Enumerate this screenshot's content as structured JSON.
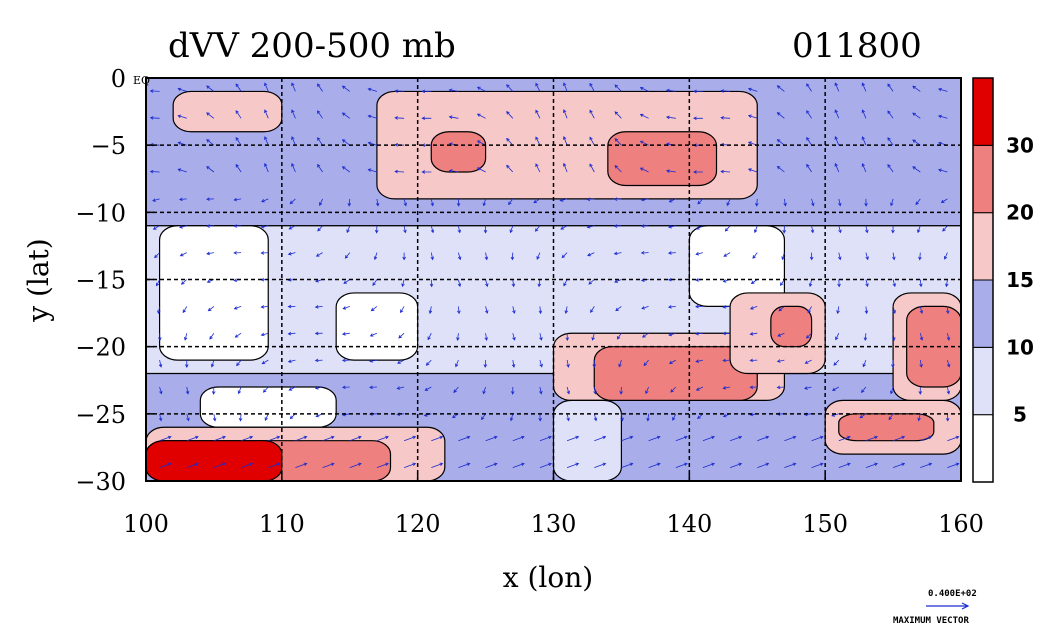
{
  "chart_data": {
    "type": "heatmap",
    "title": "dVV 200-500 mb",
    "title_right": "011800",
    "xlabel": "x (lon)",
    "ylabel": "y (lat)",
    "xlim": [
      100,
      160
    ],
    "ylim": [
      -30,
      0
    ],
    "xticks": [
      100,
      110,
      120,
      130,
      140,
      150,
      160
    ],
    "yticks": [
      0,
      -5,
      -10,
      -15,
      -20,
      -25,
      -30
    ],
    "xtick_labels": [
      "100",
      "110",
      "120",
      "130",
      "140",
      "150",
      "160"
    ],
    "ytick_labels": [
      "0",
      "−5",
      "−10",
      "−15",
      "−20",
      "−25",
      "−30"
    ],
    "grid": true,
    "equator_label": "EQ",
    "colorbar": {
      "levels": [
        5,
        10,
        15,
        20,
        30
      ],
      "tick_labels": [
        "5",
        "10",
        "15",
        "20",
        "30"
      ],
      "colors": [
        "#ffffff",
        "#dfe1f8",
        "#a9aeea",
        "#f6c8c8",
        "#ee8080",
        "#e00000"
      ]
    },
    "vector_legend": {
      "value_label": "0.400E+02",
      "caption": "MAXIMUM VECTOR"
    },
    "regions": [
      {
        "level": 2,
        "lon": [
          100,
          160
        ],
        "lat": [
          -11,
          0
        ]
      },
      {
        "level": 1,
        "lon": [
          100,
          160
        ],
        "lat": [
          -22,
          -11
        ]
      },
      {
        "level": 2,
        "lon": [
          100,
          160
        ],
        "lat": [
          -30,
          -22
        ]
      },
      {
        "level": 3,
        "lon": [
          117,
          145
        ],
        "lat": [
          -9,
          -1
        ]
      },
      {
        "level": 4,
        "lon": [
          121,
          125
        ],
        "lat": [
          -7,
          -4
        ]
      },
      {
        "level": 4,
        "lon": [
          134,
          142
        ],
        "lat": [
          -8,
          -4
        ]
      },
      {
        "level": 3,
        "lon": [
          102,
          110
        ],
        "lat": [
          -4,
          -1
        ]
      },
      {
        "level": 0,
        "lon": [
          101,
          109
        ],
        "lat": [
          -21,
          -11
        ]
      },
      {
        "level": 0,
        "lon": [
          114,
          120
        ],
        "lat": [
          -21,
          -16
        ]
      },
      {
        "level": 0,
        "lon": [
          140,
          147
        ],
        "lat": [
          -17,
          -11
        ]
      },
      {
        "level": 0,
        "lon": [
          104,
          114
        ],
        "lat": [
          -26,
          -23
        ]
      },
      {
        "level": 3,
        "lon": [
          130,
          147
        ],
        "lat": [
          -24,
          -19
        ]
      },
      {
        "level": 4,
        "lon": [
          133,
          145
        ],
        "lat": [
          -24,
          -20
        ]
      },
      {
        "level": 3,
        "lon": [
          143,
          150
        ],
        "lat": [
          -22,
          -16
        ]
      },
      {
        "level": 4,
        "lon": [
          146,
          149
        ],
        "lat": [
          -20,
          -17
        ]
      },
      {
        "level": 3,
        "lon": [
          150,
          160
        ],
        "lat": [
          -28,
          -24
        ]
      },
      {
        "level": 4,
        "lon": [
          151,
          158
        ],
        "lat": [
          -27,
          -25
        ]
      },
      {
        "level": 3,
        "lon": [
          155,
          160
        ],
        "lat": [
          -24,
          -16
        ]
      },
      {
        "level": 4,
        "lon": [
          156,
          160
        ],
        "lat": [
          -23,
          -17
        ]
      },
      {
        "level": 1,
        "lon": [
          130,
          135
        ],
        "lat": [
          -30,
          -24
        ]
      },
      {
        "level": 3,
        "lon": [
          100,
          122
        ],
        "lat": [
          -30,
          -26
        ]
      },
      {
        "level": 4,
        "lon": [
          100,
          118
        ],
        "lat": [
          -30,
          -27
        ]
      },
      {
        "level": 5,
        "lon": [
          100,
          110
        ],
        "lat": [
          -30,
          -27
        ]
      }
    ]
  }
}
